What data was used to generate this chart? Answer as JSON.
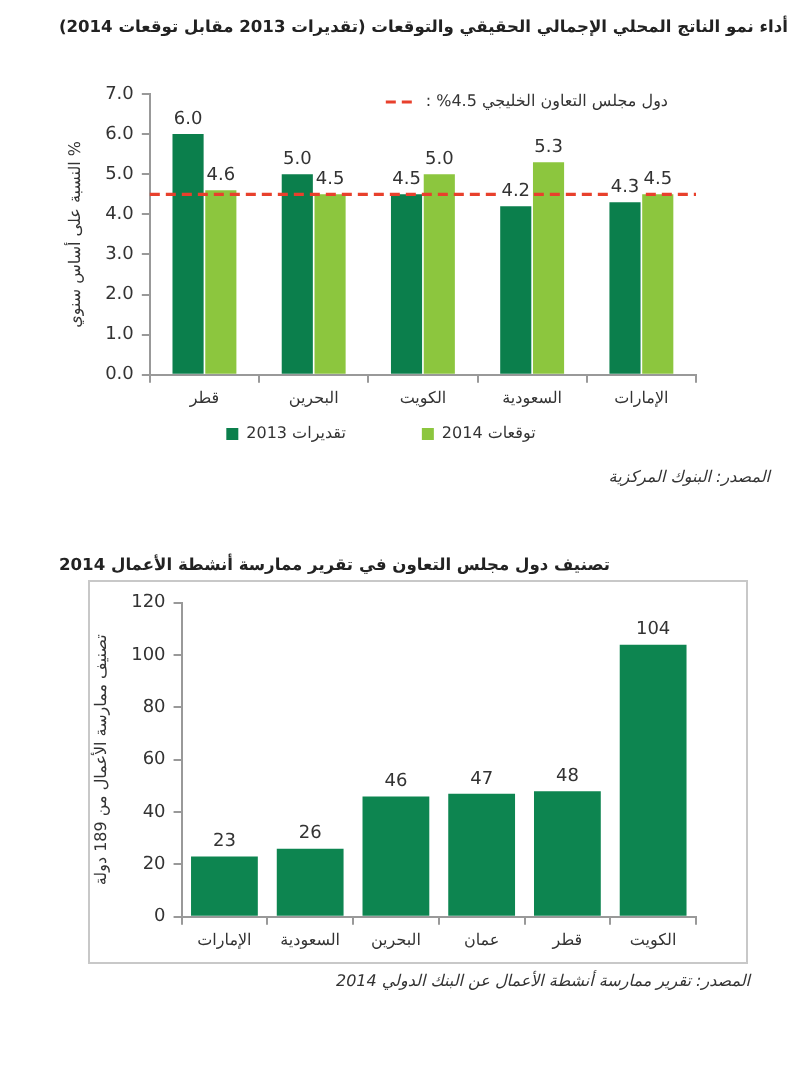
{
  "chart_data": [
    {
      "type": "bar",
      "title": "أداء نمو الناتج المحلي الإجمالي الحقيقي والتوقعات (تقديرات 2013 مقابل توقعات 2014)",
      "ylabel": "النسبة على أساس سنوي %",
      "categories": [
        "قطر",
        "البحرين",
        "الكويت",
        "السعودية",
        "الإمارات"
      ],
      "series": [
        {
          "name": "تقديرات 2013",
          "color": "#0b7f4c",
          "values": [
            6.0,
            5.0,
            4.5,
            4.2,
            4.3
          ],
          "value_labels": [
            "6.0",
            "5.0",
            "4.5",
            "4.2",
            "4.3"
          ]
        },
        {
          "name": "توقعات 2014",
          "color": "#8cc63e",
          "values": [
            4.6,
            4.5,
            5.0,
            5.3,
            4.5
          ],
          "value_labels": [
            "4.6",
            "4.5",
            "5.0",
            "5.3",
            "4.5"
          ]
        }
      ],
      "ylim": [
        0,
        7
      ],
      "yticks": [
        {
          "value": 0,
          "label": "0.0"
        },
        {
          "value": 1,
          "label": "1.0"
        },
        {
          "value": 2,
          "label": "2.0"
        },
        {
          "value": 3,
          "label": "3.0"
        },
        {
          "value": 4,
          "label": "4.0"
        },
        {
          "value": 5,
          "label": "5.0"
        },
        {
          "value": 6,
          "label": "6.0"
        },
        {
          "value": 7,
          "label": "7.0"
        }
      ],
      "ref_lines": [
        {
          "axis": "y",
          "value": 4.5,
          "label": "دول مجلس التعاون الخليجي 4.5% :",
          "color": "#e8402c",
          "line_style": "dashed"
        }
      ],
      "legend": "bottom",
      "annotations": [
        "المصدر: البنوك المركزية"
      ]
    },
    {
      "type": "bar",
      "title": "تصنيف دول مجلس التعاون في تقرير ممارسة أنشطة الأعمال 2014",
      "ylabel": "تصنيف ممارسة الأعمال من 189 دولة",
      "categories": [
        "الإمارات",
        "السعودية",
        "البحرين",
        "عمان",
        "قطر",
        "الكويت"
      ],
      "values": [
        23,
        26,
        46,
        47,
        48,
        104
      ],
      "color": "#0d8550",
      "data_labels": true,
      "ylim": [
        0,
        120
      ],
      "yticks": [
        0,
        20,
        40,
        60,
        80,
        100,
        120
      ],
      "annotations": [
        "المصدر: تقرير ممارسة أنشطة الأعمال عن البنك الدولي 2014"
      ]
    }
  ]
}
